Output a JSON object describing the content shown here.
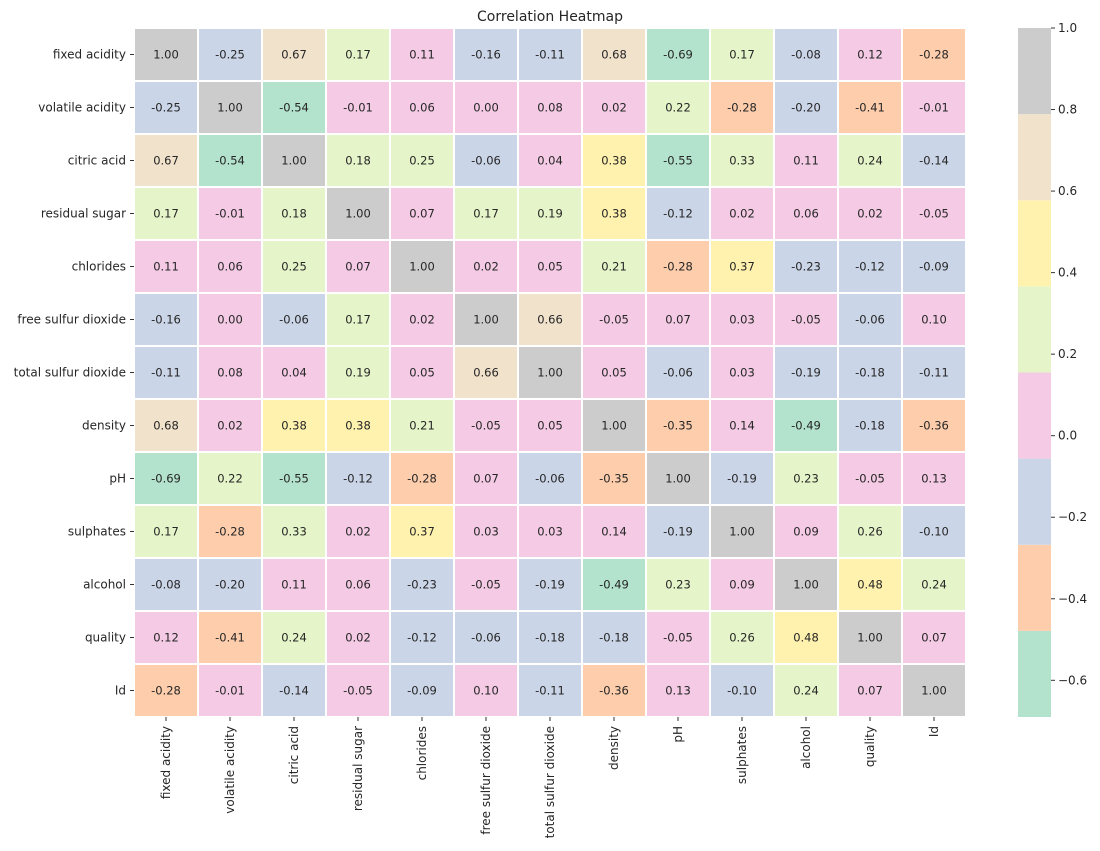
{
  "chart_data": {
    "type": "heatmap",
    "title": "Correlation Heatmap",
    "labels": [
      "fixed acidity",
      "volatile acidity",
      "citric acid",
      "residual sugar",
      "chlorides",
      "free sulfur dioxide",
      "total sulfur dioxide",
      "density",
      "pH",
      "sulphates",
      "alcohol",
      "quality",
      "Id"
    ],
    "values": [
      [
        1.0,
        -0.25,
        0.67,
        0.17,
        0.11,
        -0.16,
        -0.11,
        0.68,
        -0.69,
        0.17,
        -0.08,
        0.12,
        -0.28
      ],
      [
        -0.25,
        1.0,
        -0.54,
        -0.01,
        0.06,
        -0.0,
        0.08,
        0.02,
        0.22,
        -0.28,
        -0.2,
        -0.41,
        -0.01
      ],
      [
        0.67,
        -0.54,
        1.0,
        0.18,
        0.25,
        -0.06,
        0.04,
        0.38,
        -0.55,
        0.33,
        0.11,
        0.24,
        -0.14
      ],
      [
        0.17,
        -0.01,
        0.18,
        1.0,
        0.07,
        0.17,
        0.19,
        0.38,
        -0.12,
        0.02,
        0.06,
        0.02,
        -0.05
      ],
      [
        0.11,
        0.06,
        0.25,
        0.07,
        1.0,
        0.02,
        0.05,
        0.21,
        -0.28,
        0.37,
        -0.23,
        -0.12,
        -0.09
      ],
      [
        -0.16,
        -0.0,
        -0.06,
        0.17,
        0.02,
        1.0,
        0.66,
        -0.05,
        0.07,
        0.03,
        -0.05,
        -0.06,
        0.1
      ],
      [
        -0.11,
        0.08,
        0.04,
        0.19,
        0.05,
        0.66,
        1.0,
        0.05,
        -0.06,
        0.03,
        -0.19,
        -0.18,
        -0.11
      ],
      [
        0.68,
        0.02,
        0.38,
        0.38,
        0.21,
        -0.05,
        0.05,
        1.0,
        -0.35,
        0.14,
        -0.49,
        -0.18,
        -0.36
      ],
      [
        -0.69,
        0.22,
        -0.55,
        -0.12,
        -0.28,
        0.07,
        -0.06,
        -0.35,
        1.0,
        -0.19,
        0.23,
        -0.05,
        0.13
      ],
      [
        0.17,
        -0.28,
        0.33,
        0.02,
        0.37,
        0.03,
        0.03,
        0.14,
        -0.19,
        1.0,
        0.09,
        0.26,
        -0.1
      ],
      [
        -0.08,
        -0.2,
        0.11,
        0.06,
        -0.23,
        -0.05,
        -0.19,
        -0.49,
        0.23,
        0.09,
        1.0,
        0.48,
        0.24
      ],
      [
        0.12,
        -0.41,
        0.24,
        0.02,
        -0.12,
        -0.06,
        -0.18,
        -0.18,
        -0.05,
        0.26,
        0.48,
        1.0,
        0.07
      ],
      [
        -0.28,
        -0.01,
        -0.14,
        -0.05,
        -0.09,
        0.1,
        -0.11,
        -0.36,
        0.13,
        -0.1,
        0.24,
        0.07,
        1.0
      ]
    ],
    "vmin": -0.69,
    "vmax": 1.0,
    "colormap": [
      "#b3e2cd",
      "#fdcdac",
      "#cbd5e8",
      "#f4cae4",
      "#e6f5c9",
      "#fff2ae",
      "#f1e2cc",
      "#cccccc"
    ],
    "colorbar_ticks": [
      "1.0",
      "0.8",
      "0.6",
      "0.4",
      "0.2",
      "0.0",
      "−0.2",
      "−0.4",
      "−0.6"
    ],
    "colorbar_tick_values": [
      1.0,
      0.8,
      0.6,
      0.4,
      0.2,
      0.0,
      -0.2,
      -0.4,
      -0.6
    ],
    "annotation_format": "0.00"
  }
}
